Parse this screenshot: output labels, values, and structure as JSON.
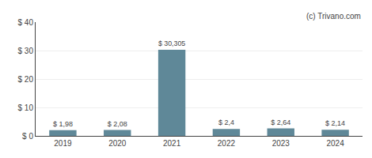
{
  "chart_data": {
    "type": "bar",
    "categories": [
      "2019",
      "2020",
      "2021",
      "2022",
      "2023",
      "2024"
    ],
    "values": [
      1.98,
      2.08,
      30.305,
      2.4,
      2.64,
      2.14
    ],
    "value_labels": [
      "$ 1,98",
      "$ 2,08",
      "$ 30,305",
      "$ 2,4",
      "$ 2,64",
      "$ 2,14"
    ],
    "data_labels": true,
    "color": "#5f8898",
    "ylim": [
      0,
      40
    ],
    "yticks": [
      {
        "value": 0,
        "label": "$ 0"
      },
      {
        "value": 10,
        "label": "$ 10"
      },
      {
        "value": 20,
        "label": "$ 20"
      },
      {
        "value": 30,
        "label": "$ 30"
      },
      {
        "value": 40,
        "label": "$ 40"
      }
    ],
    "grid": true,
    "annotations": [
      "(c) Trivano.com"
    ]
  }
}
